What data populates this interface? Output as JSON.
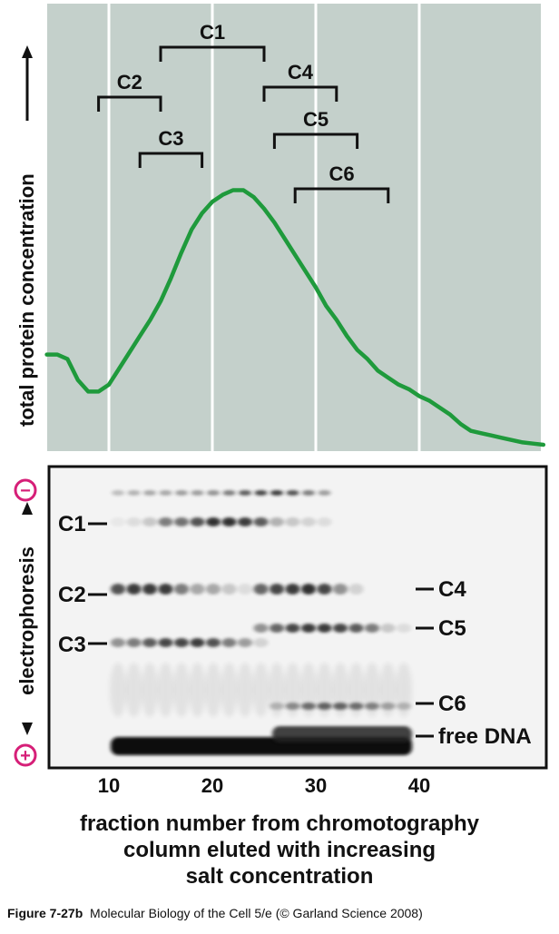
{
  "chart": {
    "ylabel": "total protein concentration",
    "fraction_ticks": [
      "10",
      "20",
      "30",
      "40"
    ],
    "peak_labels": [
      "C1",
      "C2",
      "C3",
      "C4",
      "C5",
      "C6"
    ]
  },
  "chart_data": {
    "type": "line",
    "title": "",
    "xlabel": "fraction number from chromotography column eluted with increasing salt concentration",
    "ylabel": "total protein concentration",
    "xlim": [
      4,
      52
    ],
    "x_ticks": [
      10,
      20,
      30,
      40
    ],
    "grid": true,
    "series": [
      {
        "x": [
          4,
          5,
          6,
          7,
          8,
          9,
          10,
          11,
          12,
          13,
          14,
          15,
          16,
          17,
          18,
          19,
          20,
          21,
          22,
          23,
          24,
          25,
          26,
          27,
          28,
          29,
          30,
          31,
          32,
          33,
          34,
          35,
          36,
          37,
          38,
          39,
          40,
          41,
          42,
          43,
          44,
          45,
          46,
          47,
          48,
          49,
          50,
          51,
          52
        ],
        "y": [
          0.39,
          0.39,
          0.37,
          0.28,
          0.23,
          0.23,
          0.26,
          0.33,
          0.4,
          0.47,
          0.54,
          0.62,
          0.72,
          0.83,
          0.93,
          1.0,
          1.05,
          1.08,
          1.1,
          1.1,
          1.07,
          1.02,
          0.96,
          0.89,
          0.82,
          0.75,
          0.68,
          0.6,
          0.54,
          0.47,
          0.41,
          0.37,
          0.32,
          0.29,
          0.26,
          0.24,
          0.21,
          0.19,
          0.16,
          0.13,
          0.09,
          0.06,
          0.05,
          0.04,
          0.03,
          0.02,
          0.01,
          0.005,
          0.0
        ]
      }
    ],
    "fraction_ranges": [
      {
        "label": "C1",
        "from": 15,
        "to": 25
      },
      {
        "label": "C2",
        "from": 9,
        "to": 15
      },
      {
        "label": "C3",
        "from": 13,
        "to": 19
      },
      {
        "label": "C4",
        "from": 25,
        "to": 32
      },
      {
        "label": "C5",
        "from": 26,
        "to": 34
      },
      {
        "label": "C6",
        "from": 28,
        "to": 37
      }
    ]
  },
  "gel": {
    "ylabel": "electrophoresis",
    "negative_symbol": "−",
    "positive_symbol": "+",
    "left_labels": [
      "C1",
      "C2",
      "C3"
    ],
    "right_labels": [
      "C4",
      "C5",
      "C6",
      "free DNA"
    ]
  },
  "axis_title": {
    "line1": "fraction number from chromotography",
    "line2": "column eluted with increasing",
    "line3": "salt concentration"
  },
  "caption": {
    "figure_id": "Figure 7-27b",
    "text": "Molecular Biology of the Cell 5/e (© Garland Science 2008)"
  },
  "colors": {
    "panel_bg": "#c4d0cb",
    "curve": "#1f9a3c",
    "marker": "#d61f78",
    "gel_bg": "#f3f3f3",
    "band": "#1a1a1a"
  }
}
